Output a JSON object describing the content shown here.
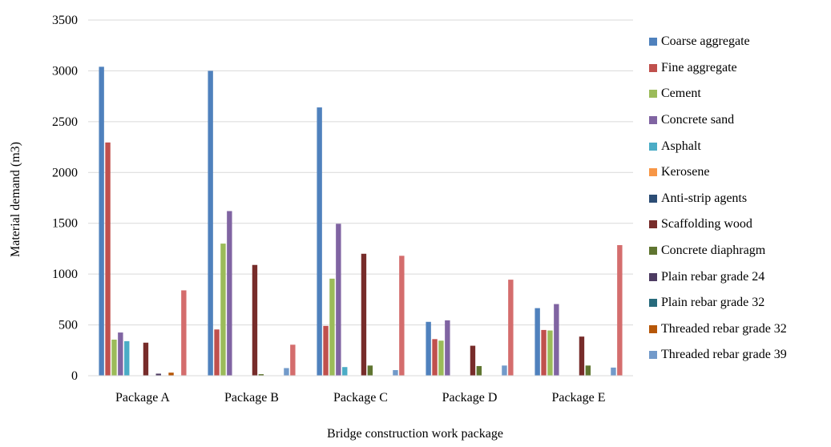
{
  "chart_data": {
    "type": "bar",
    "title": "",
    "xlabel": "Bridge construction work package",
    "ylabel": "Material demand (m3)",
    "ylim": [
      0,
      3500
    ],
    "yticks": [
      0,
      500,
      1000,
      1500,
      2000,
      2500,
      3000,
      3500
    ],
    "grid": true,
    "legend_position": "right",
    "categories": [
      "Package A",
      "Package B",
      "Package C",
      "Package D",
      "Package E"
    ],
    "series": [
      {
        "name": "Coarse aggregate",
        "color": "#4f81bd",
        "values": [
          3040,
          3000,
          2640,
          530,
          665
        ]
      },
      {
        "name": "Fine aggregate",
        "color": "#c0504d",
        "values": [
          2295,
          455,
          490,
          360,
          450
        ]
      },
      {
        "name": "Cement",
        "color": "#9bbb59",
        "values": [
          355,
          1300,
          955,
          345,
          445
        ]
      },
      {
        "name": "Concrete sand",
        "color": "#8064a2",
        "values": [
          425,
          1620,
          1495,
          545,
          705
        ]
      },
      {
        "name": "Asphalt",
        "color": "#4bacc6",
        "values": [
          340,
          0,
          85,
          0,
          0
        ]
      },
      {
        "name": "Kerosene",
        "color": "#f79646",
        "values": [
          0,
          0,
          0,
          0,
          0
        ]
      },
      {
        "name": "Anti-strip agents",
        "color": "#2c4d75",
        "values": [
          0,
          0,
          0,
          0,
          0
        ]
      },
      {
        "name": "Scaffolding wood",
        "color": "#772c2a",
        "values": [
          325,
          1090,
          1200,
          295,
          385
        ]
      },
      {
        "name": "Concrete diaphragm",
        "color": "#5f7530",
        "values": [
          0,
          15,
          100,
          95,
          100
        ]
      },
      {
        "name": "Plain rebar grade 24",
        "color": "#4d3b62",
        "values": [
          20,
          0,
          0,
          0,
          0
        ]
      },
      {
        "name": "Plain rebar grade 32",
        "color": "#276a7c",
        "values": [
          0,
          0,
          0,
          0,
          0
        ]
      },
      {
        "name": "Threaded rebar grade 32",
        "color": "#b65708",
        "values": [
          30,
          0,
          0,
          0,
          0
        ]
      },
      {
        "name": "Threaded rebar grade 39",
        "color": "#729aca",
        "values": [
          0,
          75,
          55,
          100,
          80
        ]
      },
      {
        "name": "",
        "color": "#d46d6d",
        "values": [
          840,
          305,
          1180,
          945,
          1285
        ]
      }
    ]
  }
}
